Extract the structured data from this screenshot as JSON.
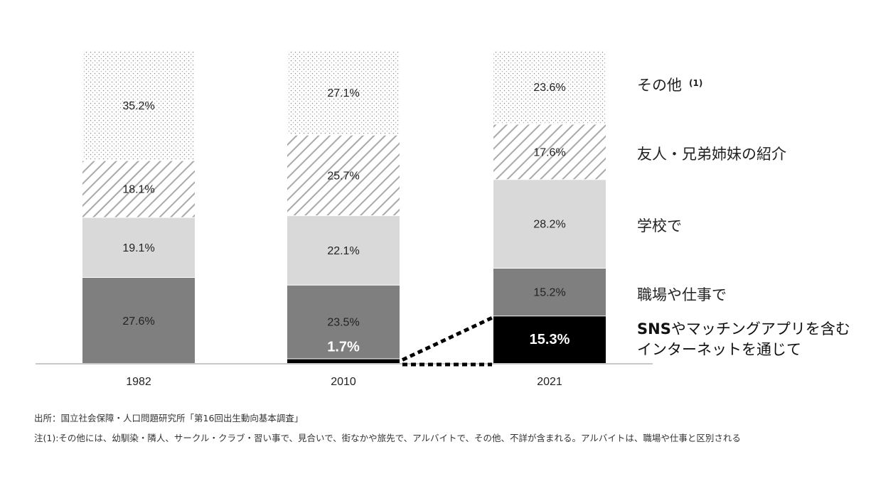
{
  "chart_data": {
    "type": "bar",
    "stacked": true,
    "normalized_percent": true,
    "categories": [
      "1982",
      "2010",
      "2021"
    ],
    "series": [
      {
        "name": "SNSやマッチングアプリを含むインターネットを通じて",
        "values": [
          0,
          1.7,
          15.3
        ],
        "labels": [
          "",
          "1.7%",
          "15.3%"
        ],
        "fill": "solid",
        "color": "#000000"
      },
      {
        "name": "職場や仕事で",
        "values": [
          27.6,
          23.5,
          15.2
        ],
        "labels": [
          "27.6%",
          "23.5%",
          "15.2%"
        ],
        "fill": "solid",
        "color": "#7f7f7f"
      },
      {
        "name": "学校で",
        "values": [
          19.1,
          22.1,
          28.2
        ],
        "labels": [
          "19.1%",
          "22.1%",
          "28.2%"
        ],
        "fill": "solid",
        "color": "#d9d9d9"
      },
      {
        "name": "友人・兄弟姉妹の紹介",
        "values": [
          18.1,
          25.7,
          17.6
        ],
        "labels": [
          "18.1%",
          "25.7%",
          "17.6%"
        ],
        "fill": "hatch",
        "color": "#ffffff"
      },
      {
        "name": "その他",
        "values": [
          35.2,
          27.1,
          23.6
        ],
        "labels": [
          "35.2%",
          "27.1%",
          "23.6%"
        ],
        "fill": "dots",
        "color": "#ffffff"
      }
    ],
    "legend": {
      "position": "right",
      "items": [
        {
          "text": "その他",
          "note": "(1)"
        },
        {
          "text": "友人・兄弟姉妹の紹介"
        },
        {
          "text": "学校で"
        },
        {
          "text": "職場や仕事で"
        },
        {
          "line1_bold": "SNS",
          "line1_rest": "やマッチングアプリを含む",
          "line2": "インターネットを通じて"
        }
      ]
    },
    "connector": {
      "style": "dotted",
      "from": "2010",
      "to": "2021",
      "series": "SNSやマッチングアプリを含むインターネットを通じて"
    },
    "grid": false
  },
  "footnotes": {
    "source": "出所：国立社会保障・人口問題研究所「第16回出生動向基本調査」",
    "note": "注(1):その他には、幼馴染・隣人、サークル・クラブ・習い事で、見合いで、街なかや旅先で、アルバイトで、その他、不詳が含まれる。アルバイトは、職場や仕事と区別される"
  }
}
